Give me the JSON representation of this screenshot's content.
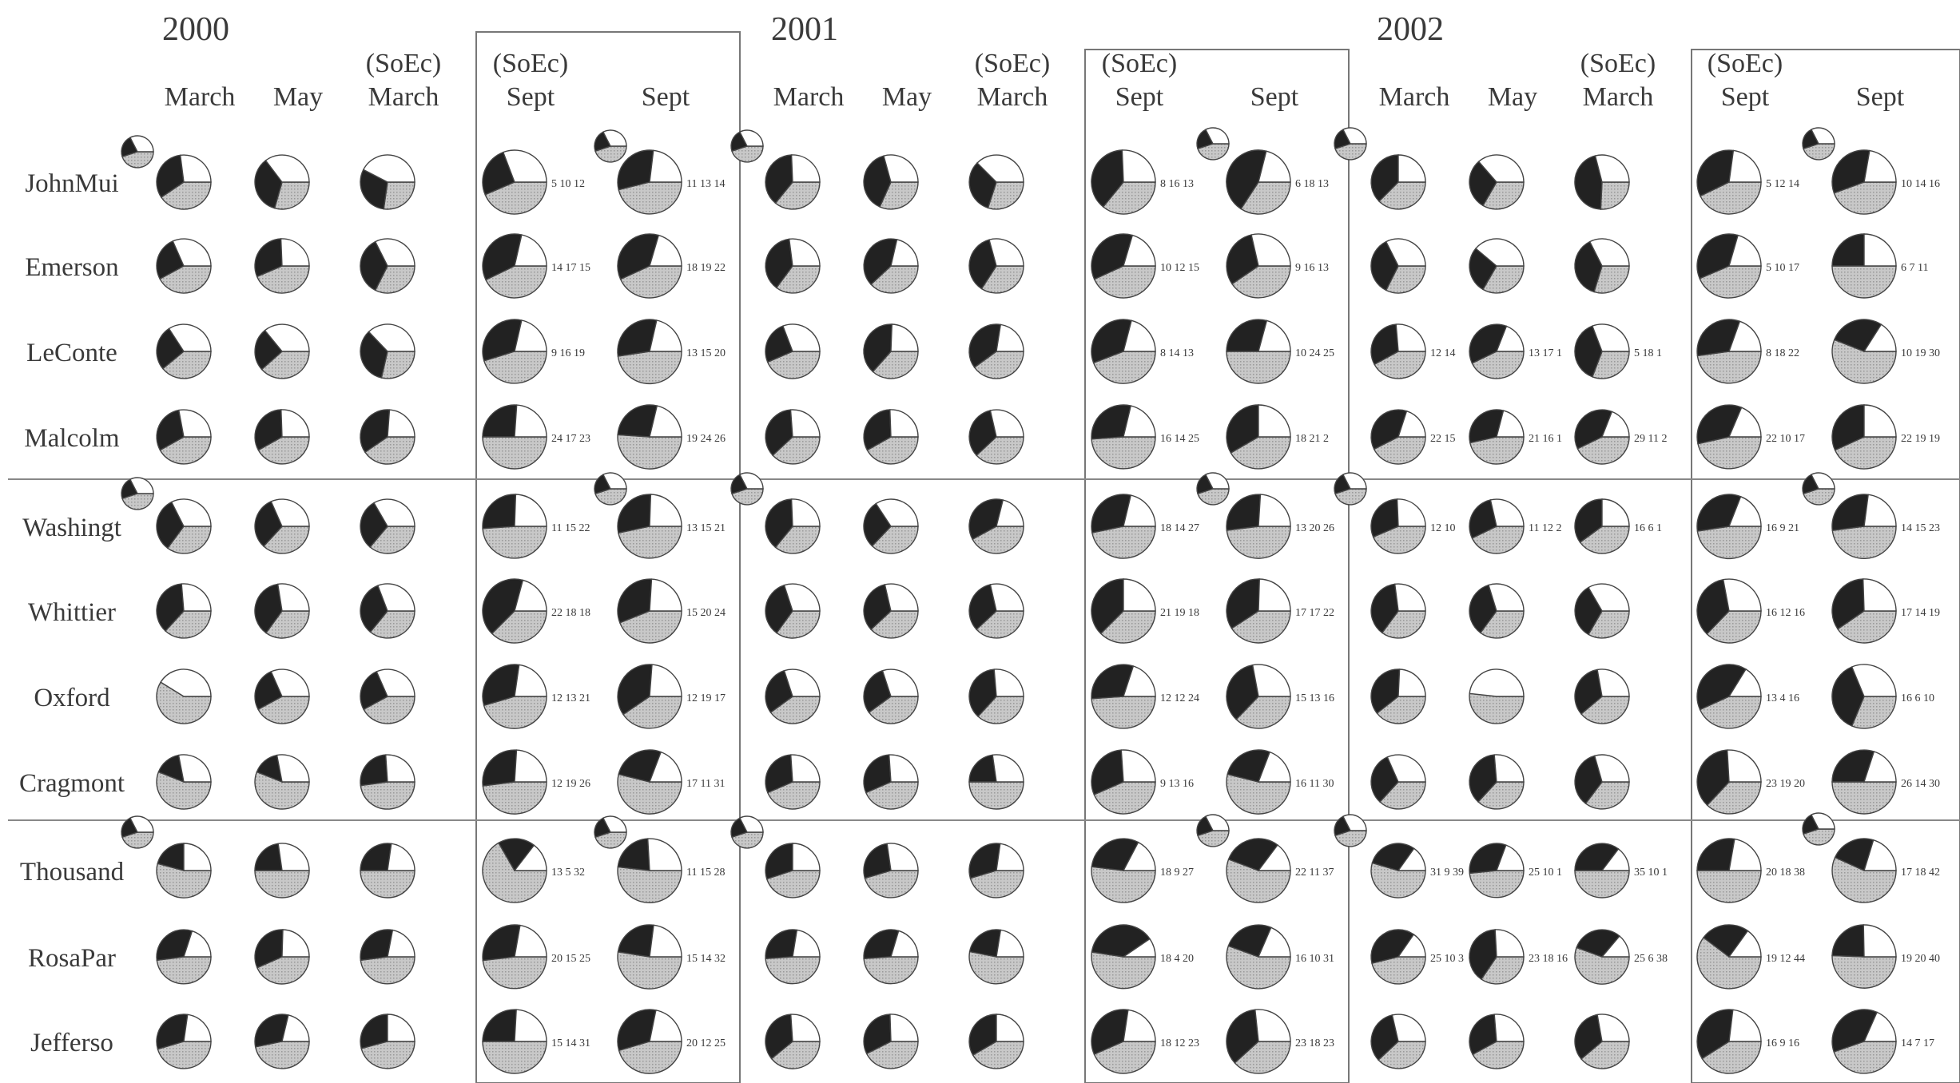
{
  "chart_data": {
    "type": "pie",
    "years": [
      "2000",
      "2001",
      "2002"
    ],
    "column_labels": [
      {
        "top": "",
        "bottom": "March"
      },
      {
        "top": "",
        "bottom": "May"
      },
      {
        "top": "(SoEc)",
        "bottom": "March"
      },
      {
        "top": "(SoEc)",
        "bottom": "Sept"
      },
      {
        "top": "",
        "bottom": "Sept"
      }
    ],
    "rows": [
      "JohnMui",
      "Emerson",
      "LeConte",
      "Malcolm",
      "Washingt",
      "Whittier",
      "Oxford",
      "Cragmont",
      "Thousand",
      "RosaPar",
      "Jefferso"
    ],
    "colors": {
      "dark": "#222222",
      "white": "#ffffff",
      "gray": "#c8c8c8",
      "outline": "#444444"
    },
    "sept_annotations": [
      [
        [
          "5 10 12",
          "11 13 14"
        ],
        [
          "8 16 13",
          "6 18 13"
        ],
        [
          "5 12 14",
          "10 14 16"
        ]
      ],
      [
        [
          "14 17 15",
          "18 19 22"
        ],
        [
          "10 12 15",
          "9 16 13"
        ],
        [
          "5 10 17",
          "6 7 11"
        ]
      ],
      [
        [
          "9 16 19",
          "13 15 20"
        ],
        [
          "8 14 13",
          "10 24 25"
        ],
        [
          "8 18 22",
          "10 19 30"
        ]
      ],
      [
        [
          "24 17 23",
          "19 24 26"
        ],
        [
          "16 14 25",
          "18 21 2"
        ],
        [
          "22 10 17",
          "22 19 19"
        ]
      ],
      [
        [
          "11 15 22",
          "13 15 21"
        ],
        [
          "18 14 27",
          "13 20 26"
        ],
        [
          "16 9 21",
          "14 15 23"
        ]
      ],
      [
        [
          "22 18 18",
          "15 20 24"
        ],
        [
          "21 19 18",
          "17 17 22"
        ],
        [
          "16 12 16",
          "17 14 19"
        ]
      ],
      [
        [
          "12 13 21",
          "12 19 17"
        ],
        [
          "12 12 24",
          "15 13 16"
        ],
        [
          "13 4 16",
          "16 6 10"
        ]
      ],
      [
        [
          "12 19 26",
          "17 11 31"
        ],
        [
          "9 13 16",
          "16 11 30"
        ],
        [
          "23 19 20",
          "26 14 30"
        ]
      ],
      [
        [
          "13 5 32",
          "11 15 28"
        ],
        [
          "18 9 27",
          "22 11 37"
        ],
        [
          "20 18 38",
          "17 18 42"
        ]
      ],
      [
        [
          "20 15 25",
          "15 14 32"
        ],
        [
          "18 4 20",
          "16 10 31"
        ],
        [
          "19 12 44",
          "19 20 40"
        ]
      ],
      [
        [
          "15 14 31",
          "20 12 25"
        ],
        [
          "18 12 23",
          "23 18 23"
        ],
        [
          "16 9 16",
          "14 7 17"
        ]
      ]
    ],
    "other_annotations_2002": [
      {
        "row": 2,
        "march": "12 14",
        "may": "13 17 1",
        "soec_march": "5 18 1"
      },
      {
        "row": 3,
        "march": "22 15",
        "may": "21 16 1",
        "soec_march": "29 11 2"
      },
      {
        "row": 4,
        "march": "12 10",
        "may": "11 12 2",
        "soec_march": "16 6 1"
      },
      {
        "row": 8,
        "march": "31 9 39",
        "may": "25 10 1",
        "soec_march": "35 10 1"
      },
      {
        "row": 9,
        "march": "25 10 3",
        "may": "23 18 16",
        "soec_march": "25 6 38"
      }
    ],
    "pies": [
      [
        [
          [
            12,
            10,
            15
          ],
          [
            12,
            12,
            10
          ],
          [
            10,
            14,
            9
          ],
          [
            10,
            12,
            17
          ],
          [
            12,
            9,
            18
          ]
        ],
        [
          [
            15,
            10,
            14
          ],
          [
            16,
            12,
            13
          ],
          [
            13,
            15,
            12
          ],
          [
            15,
            10,
            14
          ],
          [
            17,
            8,
            13
          ]
        ],
        [
          [
            12,
            8,
            12
          ],
          [
            10,
            12,
            11
          ],
          [
            14,
            9,
            8
          ],
          [
            12,
            8,
            15
          ],
          [
            12,
            8,
            16
          ]
        ]
      ],
      [
        [
          [
            10,
            12,
            16
          ],
          [
            12,
            10,
            17
          ],
          [
            13,
            12,
            12
          ],
          [
            15,
            9,
            18
          ],
          [
            16,
            9,
            19
          ]
        ],
        [
          [
            14,
            10,
            13
          ],
          [
            17,
            9,
            16
          ],
          [
            15,
            12,
            14
          ],
          [
            16,
            9,
            19
          ],
          [
            13,
            12,
            17
          ]
        ],
        [
          [
            13,
            12,
            12
          ],
          [
            10,
            14,
            12
          ],
          [
            14,
            12,
            11
          ],
          [
            14,
            8,
            17
          ],
          [
            11,
            11,
            22
          ]
        ]
      ],
      [
        [
          [
            11,
            14,
            16
          ],
          [
            10,
            14,
            15
          ],
          [
            12,
            13,
            10
          ],
          [
            14,
            9,
            19
          ],
          [
            13,
            9,
            20
          ]
        ],
        [
          [
            10,
            12,
            17
          ],
          [
            16,
            10,
            15
          ],
          [
            15,
            9,
            16
          ],
          [
            15,
            9,
            19
          ],
          [
            14,
            10,
            24
          ]
        ],
        [
          [
            12,
            10,
            16
          ],
          [
            16,
            8,
            18
          ],
          [
            15,
            12,
            12
          ],
          [
            15,
            9,
            22
          ],
          [
            14,
            8,
            28
          ]
        ]
      ],
      [
        [
          [
            13,
            12,
            18
          ],
          [
            14,
            11,
            18
          ],
          [
            15,
            10,
            17
          ],
          [
            12,
            11,
            23
          ],
          [
            13,
            10,
            24
          ]
        ],
        [
          [
            15,
            11,
            16
          ],
          [
            14,
            11,
            18
          ],
          [
            14,
            12,
            16
          ],
          [
            14,
            10,
            23
          ],
          [
            16,
            12,
            20
          ]
        ],
        [
          [
            15,
            8,
            17
          ],
          [
            14,
            9,
            20
          ],
          [
            16,
            8,
            18
          ],
          [
            15,
            8,
            20
          ],
          [
            14,
            11,
            19
          ]
        ]
      ],
      [
        [
          [
            12,
            12,
            13
          ],
          [
            12,
            12,
            14
          ],
          [
            11,
            12,
            13
          ],
          [
            12,
            11,
            22
          ],
          [
            13,
            11,
            21
          ]
        ],
        [
          [
            15,
            10,
            14
          ],
          [
            10,
            12,
            13
          ],
          [
            14,
            8,
            16
          ],
          [
            15,
            10,
            22
          ],
          [
            14,
            12,
            24
          ]
        ],
        [
          [
            12,
            10,
            17
          ],
          [
            12,
            12,
            18
          ],
          [
            14,
            10,
            16
          ],
          [
            14,
            8,
            20
          ],
          [
            14,
            11,
            23
          ]
        ]
      ],
      [
        [
          [
            14,
            10,
            14
          ],
          [
            15,
            11,
            14
          ],
          [
            13,
            12,
            14
          ],
          [
            20,
            10,
            18
          ],
          [
            16,
            12,
            22
          ]
        ],
        [
          [
            14,
            12,
            14
          ],
          [
            14,
            12,
            16
          ],
          [
            14,
            12,
            16
          ],
          [
            18,
            12,
            18
          ],
          [
            17,
            12,
            20
          ]
        ],
        [
          [
            14,
            10,
            13
          ],
          [
            13,
            11,
            13
          ],
          [
            12,
            12,
            12
          ],
          [
            15,
            12,
            16
          ],
          [
            16,
            12,
            19
          ]
        ]
      ],
      [
        [
          [
            0,
            14,
            20
          ],
          [
            10,
            12,
            16
          ],
          [
            10,
            12,
            16
          ],
          [
            14,
            10,
            20
          ],
          [
            15,
            10,
            17
          ]
        ],
        [
          [
            12,
            12,
            16
          ],
          [
            12,
            12,
            16
          ],
          [
            14,
            10,
            14
          ],
          [
            14,
            9,
            22
          ],
          [
            15,
            12,
            16
          ]
        ],
        [
          [
            12,
            8,
            13
          ],
          [
            0,
            14,
            15
          ],
          [
            12,
            10,
            14
          ],
          [
            15,
            6,
            16
          ],
          [
            12,
            10,
            10
          ]
        ]
      ],
      [
        [
          [
            8,
            14,
            28
          ],
          [
            8,
            14,
            28
          ],
          [
            12,
            12,
            22
          ],
          [
            14,
            12,
            24
          ],
          [
            14,
            10,
            28
          ]
        ],
        [
          [
            14,
            12,
            20
          ],
          [
            14,
            12,
            20
          ],
          [
            10,
            12,
            22
          ],
          [
            14,
            12,
            20
          ],
          [
            14,
            10,
            28
          ]
        ],
        [
          [
            12,
            12,
            14
          ],
          [
            14,
            10,
            14
          ],
          [
            12,
            10,
            12
          ],
          [
            20,
            14,
            20
          ],
          [
            18,
            12,
            30
          ]
        ]
      ],
      [
        [
          [
            10,
            12,
            26
          ],
          [
            10,
            12,
            22
          ],
          [
            12,
            10,
            22
          ],
          [
            9,
            7,
            32
          ],
          [
            12,
            14,
            28
          ]
        ],
        [
          [
            12,
            10,
            18
          ],
          [
            12,
            12,
            20
          ],
          [
            14,
            10,
            20
          ],
          [
            16,
            9,
            27
          ],
          [
            18,
            9,
            34
          ]
        ],
        [
          [
            20,
            10,
            36
          ],
          [
            20,
            12,
            30
          ],
          [
            24,
            10,
            34
          ],
          [
            20,
            16,
            36
          ],
          [
            17,
            15,
            42
          ]
        ]
      ],
      [
        [
          [
            16,
            10,
            24
          ],
          [
            17,
            13,
            23
          ],
          [
            15,
            11,
            24
          ],
          [
            16,
            12,
            26
          ],
          [
            15,
            14,
            32
          ]
        ],
        [
          [
            14,
            11,
            24
          ],
          [
            15,
            10,
            24
          ],
          [
            12,
            11,
            26
          ],
          [
            16,
            4,
            22
          ],
          [
            14,
            10,
            30
          ]
        ],
        [
          [
            25,
            10,
            30
          ],
          [
            23,
            15,
            20
          ],
          [
            22,
            10,
            40
          ],
          [
            18,
            11,
            44
          ],
          [
            19,
            20,
            40
          ]
        ]
      ],
      [
        [
          [
            14,
            10,
            20
          ],
          [
            15,
            10,
            22
          ],
          [
            14,
            12,
            22
          ],
          [
            15,
            14,
            29
          ],
          [
            18,
            12,
            25
          ]
        ],
        [
          [
            16,
            12,
            18
          ],
          [
            15,
            12,
            20
          ],
          [
            16,
            12,
            20
          ],
          [
            18,
            12,
            23
          ],
          [
            21,
            16,
            23
          ]
        ],
        [
          [
            14,
            12,
            16
          ],
          [
            12,
            10,
            16
          ],
          [
            12,
            10,
            14
          ],
          [
            14,
            9,
            16
          ],
          [
            14,
            7,
            17
          ]
        ]
      ]
    ]
  }
}
